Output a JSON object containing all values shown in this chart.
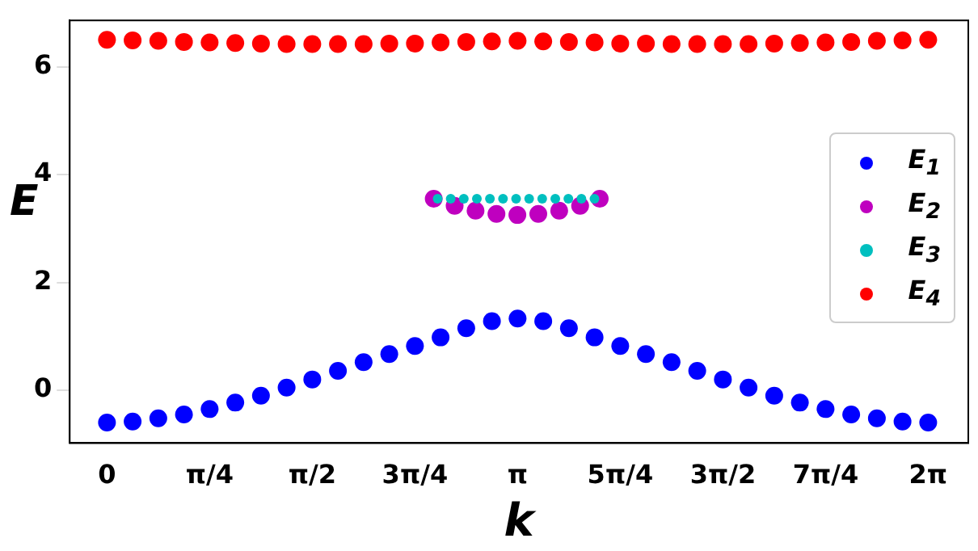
{
  "chart_data": {
    "type": "scatter",
    "xlabel": "k",
    "ylabel": "E",
    "xlim": [
      -0.285,
      6.59
    ],
    "ylim": [
      -0.98,
      6.86
    ],
    "xticks": [
      {
        "value": 0,
        "label": "0"
      },
      {
        "value": 0.7854,
        "label": "π/4"
      },
      {
        "value": 1.5708,
        "label": "π/2"
      },
      {
        "value": 2.3562,
        "label": "3π/4"
      },
      {
        "value": 3.1416,
        "label": "π"
      },
      {
        "value": 3.927,
        "label": "5π/4"
      },
      {
        "value": 4.7124,
        "label": "3π/2"
      },
      {
        "value": 5.4978,
        "label": "7π/4"
      },
      {
        "value": 6.2832,
        "label": "2π"
      }
    ],
    "yticks": [
      0,
      2,
      4,
      6
    ],
    "legend": "right",
    "marker": "circle",
    "grid": false,
    "series": [
      {
        "name": "E$_{1}$",
        "color": "#0000ff",
        "x": [
          0,
          0.1963,
          0.3927,
          0.589,
          0.7854,
          0.9817,
          1.1781,
          1.3744,
          1.5708,
          1.7671,
          1.9635,
          2.1598,
          2.3562,
          2.5525,
          2.7489,
          2.9452,
          3.1416,
          3.3379,
          3.5343,
          3.7306,
          3.927,
          4.1233,
          4.3197,
          4.516,
          4.7124,
          4.9087,
          5.1051,
          5.3014,
          5.4978,
          5.6941,
          5.8905,
          6.0868,
          6.2832
        ],
        "values": [
          -0.6,
          -0.58,
          -0.52,
          -0.45,
          -0.35,
          -0.23,
          -0.1,
          0.05,
          0.2,
          0.36,
          0.52,
          0.67,
          0.82,
          0.98,
          1.15,
          1.28,
          1.33,
          1.28,
          1.15,
          0.98,
          0.82,
          0.67,
          0.52,
          0.36,
          0.2,
          0.05,
          -0.1,
          -0.23,
          -0.35,
          -0.45,
          -0.52,
          -0.58,
          -0.6
        ]
      },
      {
        "name": "E$_{2}$",
        "color": "#bf00bf",
        "x": [
          2.5,
          2.66,
          2.82,
          2.98,
          3.14,
          3.3,
          3.46,
          3.62,
          3.77
        ],
        "values": [
          3.55,
          3.42,
          3.33,
          3.27,
          3.25,
          3.27,
          3.33,
          3.42,
          3.55
        ]
      },
      {
        "name": "E$_{3}$",
        "color": "#00bfbf",
        "x": [
          2.53,
          2.63,
          2.73,
          2.83,
          2.93,
          3.03,
          3.13,
          3.23,
          3.33,
          3.43,
          3.53,
          3.63,
          3.73
        ],
        "values": [
          3.55,
          3.55,
          3.55,
          3.55,
          3.55,
          3.55,
          3.55,
          3.55,
          3.55,
          3.55,
          3.55,
          3.55,
          3.55
        ]
      },
      {
        "name": "E$_{4}$",
        "color": "#ff0000",
        "x": [
          0,
          0.1963,
          0.3927,
          0.589,
          0.7854,
          0.9817,
          1.1781,
          1.3744,
          1.5708,
          1.7671,
          1.9635,
          2.1598,
          2.3562,
          2.5525,
          2.7489,
          2.9452,
          3.1416,
          3.3379,
          3.5343,
          3.7306,
          3.927,
          4.1233,
          4.3197,
          4.516,
          4.7124,
          4.9087,
          5.1051,
          5.3014,
          5.4978,
          5.6941,
          5.8905,
          6.0868,
          6.2832
        ],
        "values": [
          6.5,
          6.49,
          6.48,
          6.46,
          6.45,
          6.44,
          6.43,
          6.42,
          6.42,
          6.42,
          6.42,
          6.43,
          6.43,
          6.45,
          6.46,
          6.47,
          6.48,
          6.47,
          6.46,
          6.45,
          6.43,
          6.43,
          6.42,
          6.42,
          6.42,
          6.42,
          6.43,
          6.44,
          6.45,
          6.46,
          6.48,
          6.49,
          6.5
        ]
      }
    ]
  }
}
